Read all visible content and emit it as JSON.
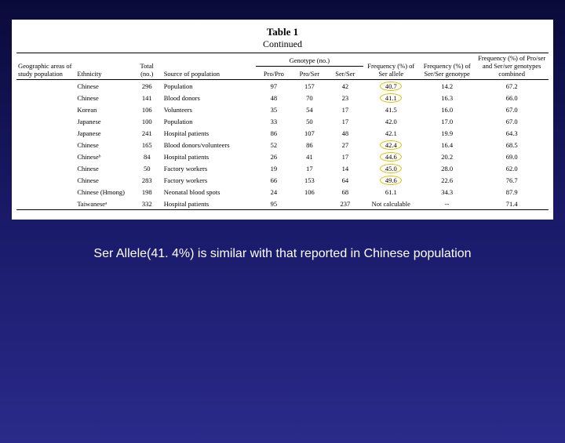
{
  "title": "Table 1",
  "subtitle": "Continued",
  "genotype_header": "Genotype (no.)",
  "columns": {
    "geo": "Geographic areas of study population",
    "ethnicity": "Ethnicity",
    "total": "Total (no.)",
    "source": "Source of population",
    "propro": "Pro/Pro",
    "proser": "Pro/Ser",
    "serser": "Ser/Ser",
    "freq_ser": "Frequency (%) of Ser allele",
    "freq_serser": "Frequency (%) of Ser/Ser genotype",
    "freq_combined": "Frequency (%) of Pro/ser and Ser/ser genotypes combined"
  },
  "rows": [
    {
      "ethnicity": "Chinese",
      "total": "296",
      "source": "Population",
      "propro": "97",
      "proser": "157",
      "serser": "42",
      "freq_ser": "40.7",
      "freq_serser": "14.2",
      "freq_combined": "67.2",
      "highlight": true
    },
    {
      "ethnicity": "Chinese",
      "total": "141",
      "source": "Blood donors",
      "propro": "48",
      "proser": "70",
      "serser": "23",
      "freq_ser": "41.1",
      "freq_serser": "16.3",
      "freq_combined": "66.0",
      "highlight": true
    },
    {
      "ethnicity": "Korean",
      "total": "106",
      "source": "Volunteers",
      "propro": "35",
      "proser": "54",
      "serser": "17",
      "freq_ser": "41.5",
      "freq_serser": "16.0",
      "freq_combined": "67.0",
      "highlight": false
    },
    {
      "ethnicity": "Japanese",
      "total": "100",
      "source": "Population",
      "propro": "33",
      "proser": "50",
      "serser": "17",
      "freq_ser": "42.0",
      "freq_serser": "17.0",
      "freq_combined": "67.0",
      "highlight": false
    },
    {
      "ethnicity": "Japanese",
      "total": "241",
      "source": "Hospital patients",
      "propro": "86",
      "proser": "107",
      "serser": "48",
      "freq_ser": "42.1",
      "freq_serser": "19.9",
      "freq_combined": "64.3",
      "highlight": false
    },
    {
      "ethnicity": "Chinese",
      "total": "165",
      "source": "Blood donors/volunteers",
      "propro": "52",
      "proser": "86",
      "serser": "27",
      "freq_ser": "42.4",
      "freq_serser": "16.4",
      "freq_combined": "68.5",
      "highlight": true
    },
    {
      "ethnicity": "Chineseᵇ",
      "total": "84",
      "source": "Hospital patients",
      "propro": "26",
      "proser": "41",
      "serser": "17",
      "freq_ser": "44.6",
      "freq_serser": "20.2",
      "freq_combined": "69.0",
      "highlight": true
    },
    {
      "ethnicity": "Chinese",
      "total": "50",
      "source": "Factory workers",
      "propro": "19",
      "proser": "17",
      "serser": "14",
      "freq_ser": "45.0",
      "freq_serser": "28.0",
      "freq_combined": "62.0",
      "highlight": true
    },
    {
      "ethnicity": "Chinese",
      "total": "283",
      "source": "Factory workers",
      "propro": "66",
      "proser": "153",
      "serser": "64",
      "freq_ser": "49.6",
      "freq_serser": "22.6",
      "freq_combined": "76.7",
      "highlight": true
    },
    {
      "ethnicity": "Chinese (Hmong)",
      "total": "198",
      "source": "Neonatal blood spots",
      "propro": "24",
      "proser": "106",
      "serser": "68",
      "freq_ser": "61.1",
      "freq_serser": "34.3",
      "freq_combined": "87.9",
      "highlight": false
    },
    {
      "ethnicity": "Taiwaneseᵃ",
      "total": "332",
      "source": "Hospital patients",
      "propro": "95",
      "proser": "",
      "serser": "237",
      "freq_ser": "Not calculable",
      "freq_serser": "--",
      "freq_combined": "71.4",
      "highlight": false
    }
  ],
  "caption": "Ser Allele(41. 4%) is similar with that reported in Chinese population",
  "colors": {
    "highlight_border": "#e0c000"
  }
}
